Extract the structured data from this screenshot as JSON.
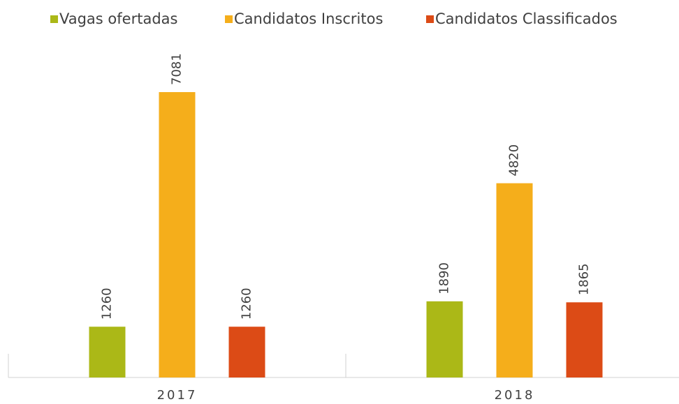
{
  "chart_data": {
    "type": "bar",
    "categories": [
      "2017",
      "2018"
    ],
    "series": [
      {
        "name": "Vagas ofertadas",
        "color": "#abb817",
        "values": [
          1260,
          1890
        ]
      },
      {
        "name": "Candidatos Inscritos",
        "color": "#f5ae1b",
        "values": [
          7081,
          4820
        ]
      },
      {
        "name": "Candidatos Classificados",
        "color": "#dc4b16",
        "values": [
          1260,
          1865
        ]
      }
    ],
    "legend": "top"
  }
}
